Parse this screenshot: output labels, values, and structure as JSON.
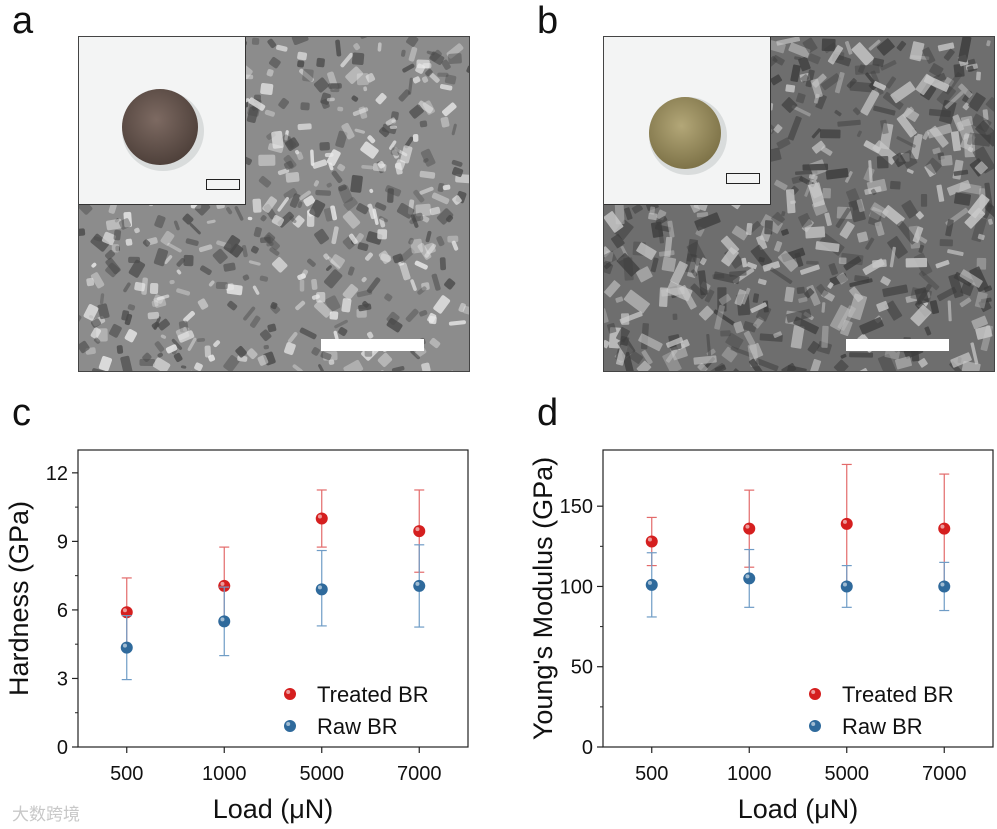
{
  "panels": {
    "a": "a",
    "b": "b",
    "c": "c",
    "d": "d"
  },
  "colors": {
    "treated": "#d51f1f",
    "raw": "#2f6a9c",
    "treated_bar": "#e36a6a",
    "raw_bar": "#6f9cc6",
    "disk_a": "#6e5a52",
    "disk_b": "#a69968"
  },
  "chart_data": [
    {
      "type": "scatter",
      "title": "",
      "xlabel": "Load (μN)",
      "ylabel": "Hardness (GPa)",
      "categories": [
        "500",
        "1000",
        "5000",
        "7000"
      ],
      "ylim": [
        0,
        13
      ],
      "yticks": [
        "0",
        "3",
        "6",
        "9",
        "12"
      ],
      "grid": false,
      "legend_position": "bottom-right",
      "series": [
        {
          "name": "Treated BR",
          "color_key": "treated",
          "values": [
            5.9,
            7.05,
            10.0,
            9.45
          ],
          "err_low": [
            1.5,
            1.7,
            1.25,
            1.8
          ],
          "err_high": [
            1.5,
            1.7,
            1.25,
            1.8
          ]
        },
        {
          "name": "Raw BR",
          "color_key": "raw",
          "values": [
            4.35,
            5.5,
            6.9,
            7.05
          ],
          "err_low": [
            1.4,
            1.5,
            1.6,
            1.8
          ],
          "err_high": [
            1.4,
            1.5,
            1.7,
            1.8
          ]
        }
      ]
    },
    {
      "type": "scatter",
      "title": "",
      "xlabel": "Load (μN)",
      "ylabel": "Young's Modulus (GPa)",
      "categories": [
        "500",
        "1000",
        "5000",
        "7000"
      ],
      "ylim": [
        0,
        185
      ],
      "yticks": [
        "0",
        "50",
        "100",
        "150"
      ],
      "grid": false,
      "legend_position": "bottom-right",
      "series": [
        {
          "name": "Treated BR",
          "color_key": "treated",
          "values": [
            128,
            136,
            139,
            136
          ],
          "err_low": [
            15,
            24,
            37,
            34
          ],
          "err_high": [
            15,
            24,
            37,
            34
          ]
        },
        {
          "name": "Raw BR",
          "color_key": "raw",
          "values": [
            101,
            105,
            100,
            100
          ],
          "err_low": [
            20,
            18,
            13,
            15
          ],
          "err_high": [
            20,
            18,
            13,
            15
          ]
        }
      ]
    }
  ],
  "watermark": "大数跨境"
}
